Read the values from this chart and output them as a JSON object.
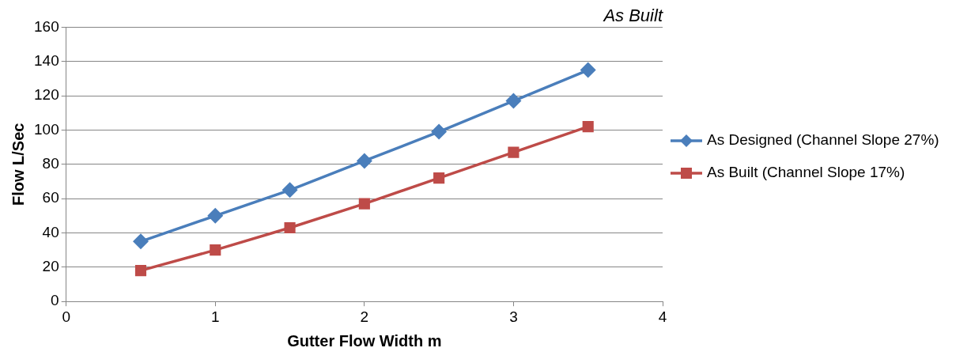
{
  "chart_data": {
    "type": "line",
    "title": "As Built",
    "xlabel": "Gutter Flow Width m",
    "ylabel": "Flow L/Sec",
    "x": [
      0.5,
      1,
      1.5,
      2,
      2.5,
      3,
      3.5
    ],
    "xlim": [
      0,
      4
    ],
    "xticks": [
      0,
      1,
      2,
      3,
      4
    ],
    "ylim": [
      0,
      160
    ],
    "yticks": [
      0,
      20,
      40,
      60,
      80,
      100,
      120,
      140,
      160
    ],
    "grid": "y",
    "legend": "right",
    "series": [
      {
        "name": "As Designed (Channel Slope 27%)",
        "color": "#4a7ebb",
        "marker": "diamond",
        "values": [
          35,
          50,
          65,
          82,
          99,
          117,
          135
        ]
      },
      {
        "name": "As Built (Channel Slope 17%)",
        "color": "#be4b48",
        "marker": "square",
        "values": [
          18,
          30,
          43,
          57,
          72,
          87,
          102
        ]
      }
    ]
  }
}
